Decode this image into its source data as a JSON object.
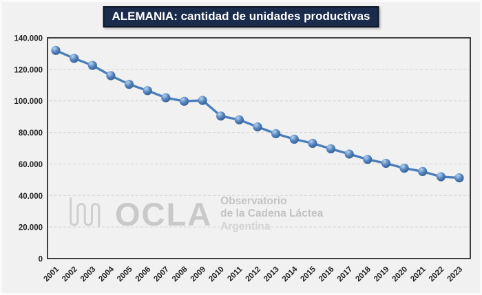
{
  "title": {
    "text": "ALEMANIA: cantidad de unidades productivas"
  },
  "watermark": {
    "brand": "OCLA",
    "line1": "Observatorio",
    "line2": "de la Cadena Láctea",
    "line3": "Argentina",
    "icon": "wave-squiggle-icon"
  },
  "colors": {
    "title_bg": "#1B2B4B",
    "title_border": "#0D1624",
    "title_text": "#FFFFFF",
    "canvas_bg": "#F1F1F1",
    "plot_border": "#3F3F3F",
    "gridline": "#D9D9D9",
    "line": "#4A7EBB",
    "marker_highlight": "#B9D4EF",
    "marker_mid": "#5585BF",
    "marker_shadow": "#2A5587",
    "axis_text": "#212121",
    "watermark_gray": "#C9C9C9"
  },
  "chart_data": {
    "type": "line",
    "title": "ALEMANIA: cantidad de unidades productivas",
    "x": [
      "2001",
      "2002",
      "2003",
      "2004",
      "2005",
      "2006",
      "2007",
      "2008",
      "2009",
      "2010",
      "2011",
      "2012",
      "2013",
      "2014",
      "2015",
      "2016",
      "2017",
      "2018",
      "2019",
      "2020",
      "2021",
      "2022",
      "2023"
    ],
    "series": [
      {
        "name": "cantidad de unidades productivas",
        "values": [
          132000,
          127000,
          122500,
          116000,
          110500,
          106500,
          102000,
          99800,
          100300,
          90400,
          88000,
          83500,
          79200,
          75700,
          73100,
          69600,
          66300,
          62900,
          60400,
          57300,
          55200,
          51900,
          51200
        ]
      }
    ],
    "ylim": [
      0,
      140000
    ],
    "ytick_interval": 20000,
    "ytick_labels": [
      "0",
      "20.000",
      "40.000",
      "60.000",
      "80.000",
      "100.000",
      "120.000",
      "140.000"
    ],
    "xlabel": "",
    "ylabel": "",
    "grid": "horizontal-dashed",
    "legend": "none",
    "marker_style": "3d-sphere"
  }
}
